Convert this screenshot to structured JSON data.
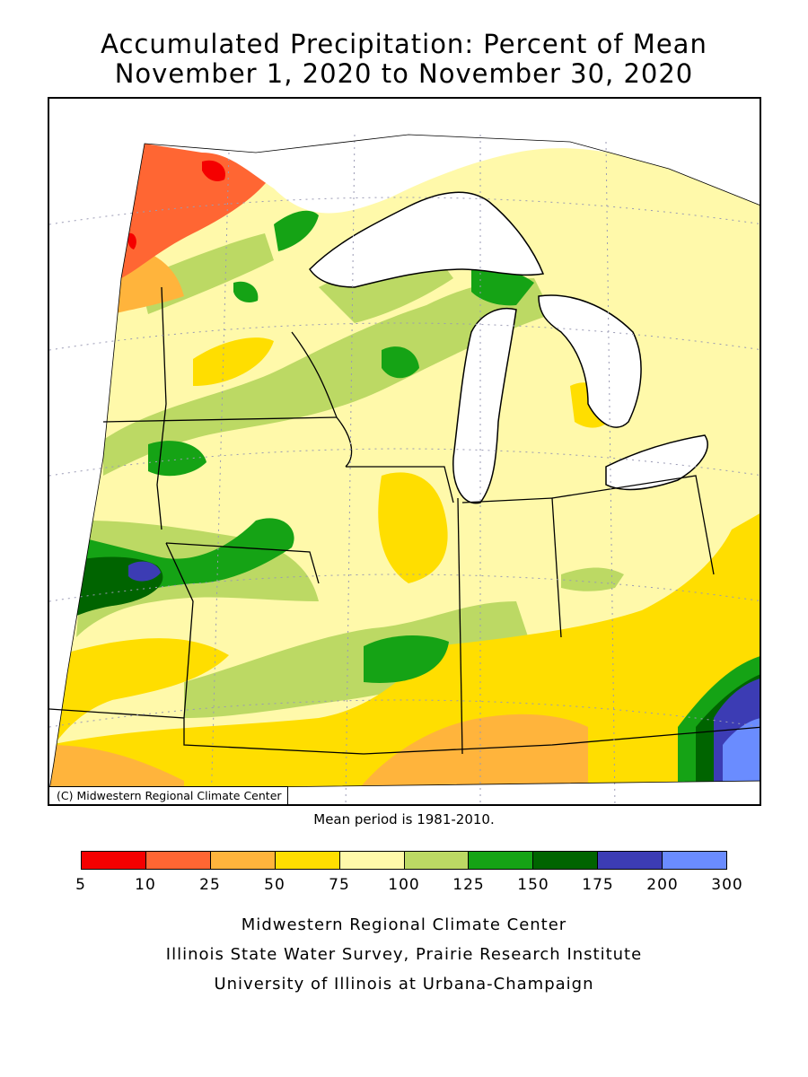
{
  "title_line1": "Accumulated Precipitation: Percent of Mean",
  "title_line2": "November 1, 2020 to November 30, 2020",
  "map": {
    "copyright": "(C) Midwestern Regional Climate Center",
    "states": [
      "Minnesota",
      "Wisconsin",
      "Michigan",
      "Iowa",
      "Illinois",
      "Indiana",
      "Ohio",
      "Missouri",
      "Kentucky"
    ],
    "lakes": [
      "Lake Superior",
      "Lake Michigan",
      "Lake Huron",
      "Lake Erie"
    ]
  },
  "mean_note": "Mean period is 1981-2010.",
  "legend": {
    "ticks": [
      "5",
      "10",
      "25",
      "50",
      "75",
      "100",
      "125",
      "150",
      "175",
      "200",
      "300"
    ],
    "colors": [
      "#f50000",
      "#ff6633",
      "#ffb43c",
      "#ffde00",
      "#fff9aa",
      "#bcd964",
      "#15a315",
      "#006400",
      "#3c3cb4",
      "#6a8cff"
    ]
  },
  "footer": {
    "line1": "Midwestern Regional Climate Center",
    "line2": "Illinois State Water Survey, Prairie Research Institute",
    "line3": "University of Illinois at Urbana-Champaign"
  }
}
